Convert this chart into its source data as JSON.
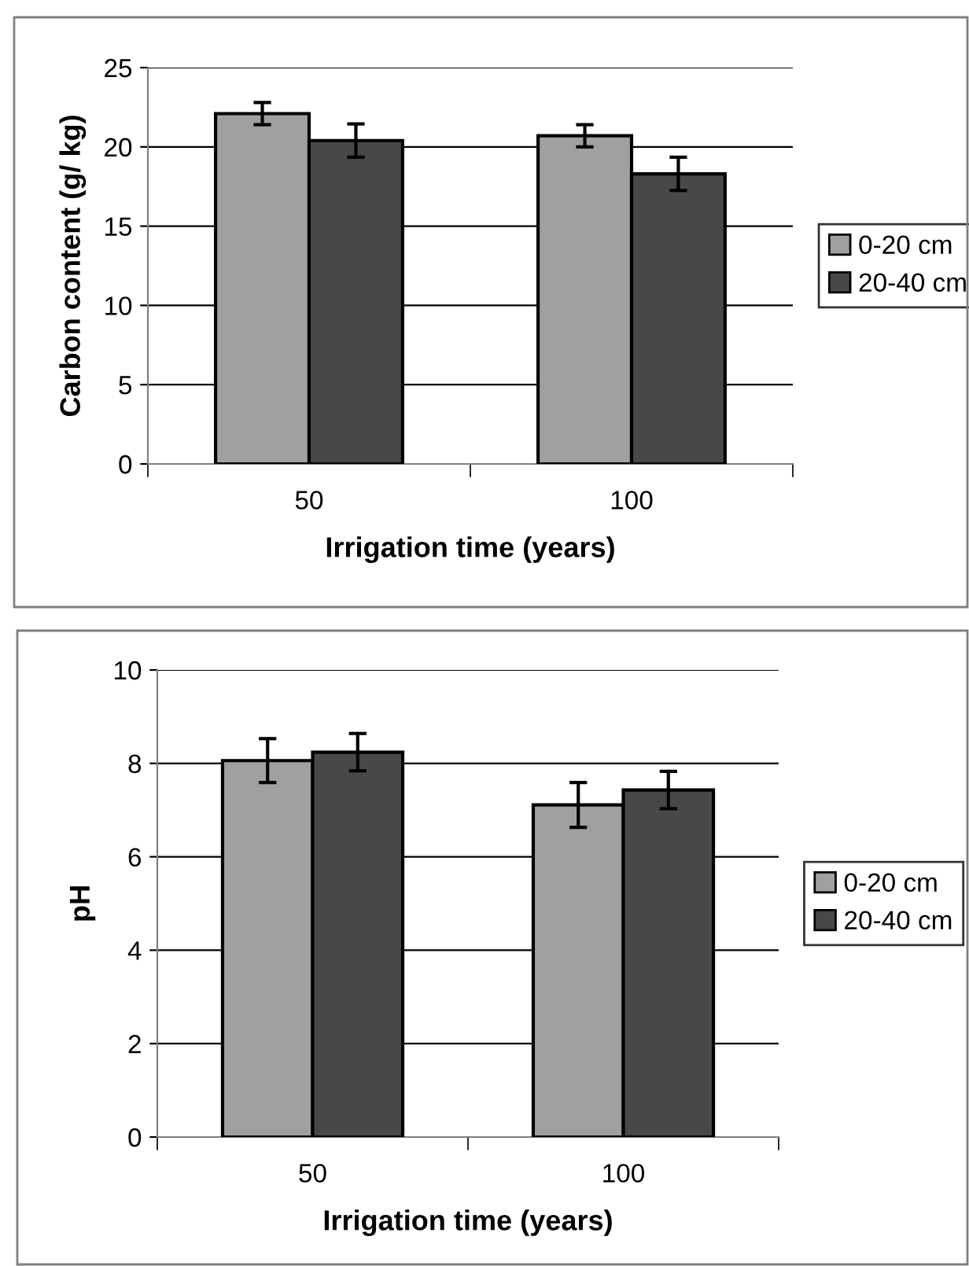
{
  "chart_data": [
    {
      "type": "bar",
      "ylabel": "Carbon content (g/ kg)",
      "xlabel": "Irrigation time (years)",
      "categories": [
        "50",
        "100"
      ],
      "series": [
        {
          "name": "0-20 cm",
          "color": "#a0a0a0",
          "values": [
            22.1,
            20.7
          ],
          "errors": [
            0.7,
            0.7
          ]
        },
        {
          "name": "20-40 cm",
          "color": "#484848",
          "values": [
            20.4,
            18.3
          ],
          "errors": [
            1.05,
            1.05
          ]
        }
      ],
      "ylim": [
        0,
        25
      ],
      "yticks": [
        0,
        5,
        10,
        15,
        20,
        25
      ],
      "grid": "y",
      "legend": "right"
    },
    {
      "type": "bar",
      "ylabel": "pH",
      "xlabel": "Irrigation time (years)",
      "categories": [
        "50",
        "100"
      ],
      "series": [
        {
          "name": "0-20 cm",
          "color": "#a0a0a0",
          "values": [
            8.06,
            7.11
          ],
          "errors": [
            0.47,
            0.48
          ]
        },
        {
          "name": "20-40 cm",
          "color": "#484848",
          "values": [
            8.24,
            7.43
          ],
          "errors": [
            0.4,
            0.4
          ]
        }
      ],
      "ylim": [
        0,
        10
      ],
      "yticks": [
        0,
        2,
        4,
        6,
        8,
        10
      ],
      "grid": "y",
      "legend": "right"
    }
  ]
}
